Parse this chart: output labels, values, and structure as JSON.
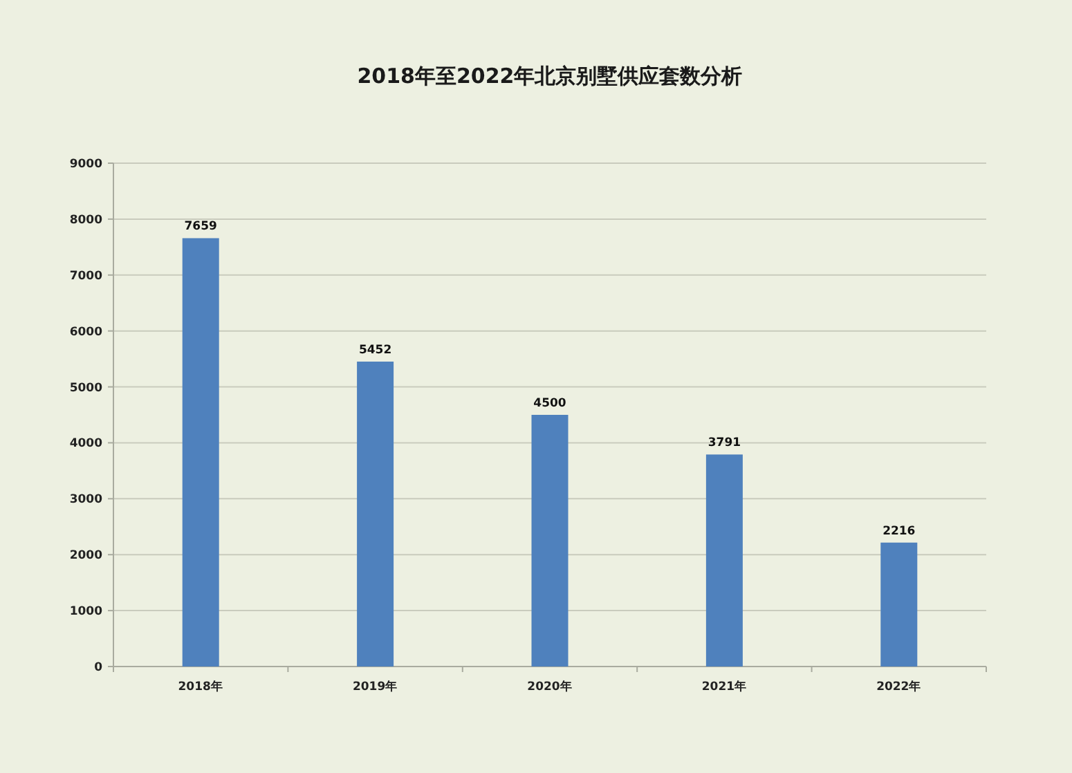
{
  "chart_data": {
    "type": "bar",
    "title": "2018年至2022年北京别墅供应套数分析",
    "categories": [
      "2018年",
      "2019年",
      "2020年",
      "2021年",
      "2022年"
    ],
    "values": [
      7659,
      5452,
      4500,
      3791,
      2216
    ],
    "color": "#4f81bd",
    "ylim": [
      0,
      9000
    ],
    "yticks": [
      0,
      1000,
      2000,
      3000,
      4000,
      5000,
      6000,
      7000,
      8000,
      9000
    ],
    "grid": "y",
    "data_labels": true
  }
}
